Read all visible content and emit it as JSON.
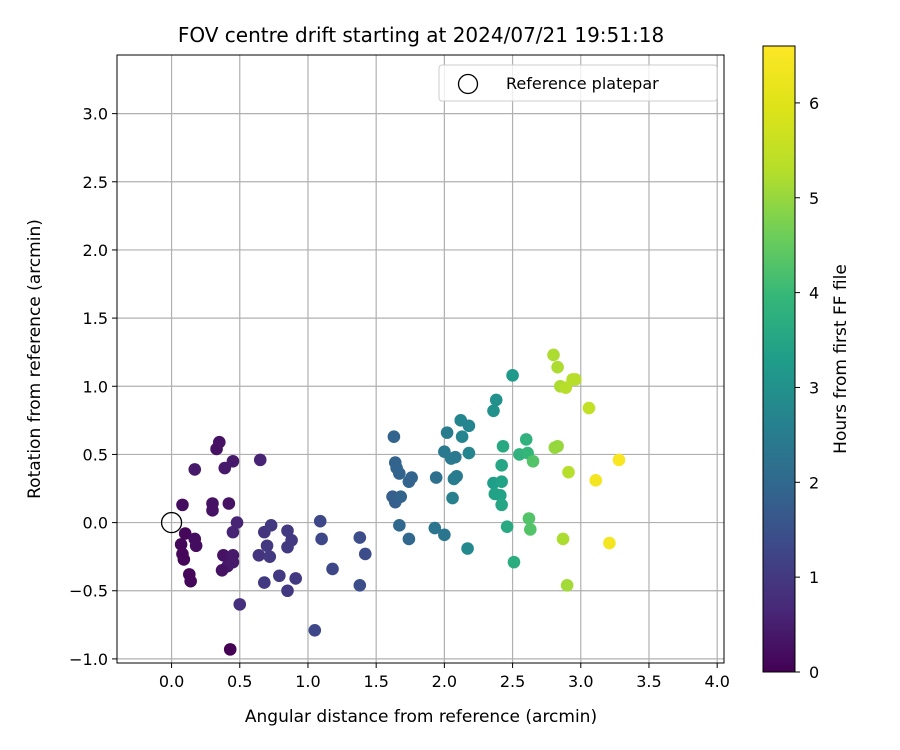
{
  "chart_data": {
    "type": "scatter",
    "title": "FOV centre drift starting at 2024/07/21 19:51:18",
    "xlabel": "Angular distance from reference (arcmin)",
    "ylabel": "Rotation from reference (arcmin)",
    "xlim": [
      -0.4,
      4.05
    ],
    "ylim": [
      -1.03,
      3.43
    ],
    "xticks": [
      0.0,
      0.5,
      1.0,
      1.5,
      2.0,
      2.5,
      3.0,
      3.5,
      4.0
    ],
    "xtick_labels": [
      "0.0",
      "0.5",
      "1.0",
      "1.5",
      "2.0",
      "2.5",
      "3.0",
      "3.5",
      "4.0"
    ],
    "yticks": [
      -1.0,
      -0.5,
      0.0,
      0.5,
      1.0,
      1.5,
      2.0,
      2.5,
      3.0
    ],
    "ytick_labels": [
      "−1.0",
      "−0.5",
      "0.0",
      "0.5",
      "1.0",
      "1.5",
      "2.0",
      "2.5",
      "3.0"
    ],
    "grid": true,
    "legend": {
      "placement": "upper right",
      "entries": [
        "Reference platepar"
      ]
    },
    "reference": {
      "name": "Reference platepar",
      "x": 0.0,
      "y": 0.0
    },
    "colorbar": {
      "label": "Hours from first FF file",
      "range": [
        0,
        6.6
      ],
      "ticks": [
        0,
        1,
        2,
        3,
        4,
        5,
        6
      ],
      "tick_labels": [
        "0",
        "1",
        "2",
        "3",
        "4",
        "5",
        "6"
      ],
      "colormap": "viridis"
    },
    "points": [
      {
        "x": 0.35,
        "y": 0.59,
        "h": 0.3
      },
      {
        "x": 0.33,
        "y": 0.54,
        "h": 0.3
      },
      {
        "x": 0.39,
        "y": 0.4,
        "h": 0.4
      },
      {
        "x": 0.17,
        "y": 0.39,
        "h": 0.4
      },
      {
        "x": 0.3,
        "y": 0.14,
        "h": 0.3
      },
      {
        "x": 0.3,
        "y": 0.09,
        "h": 0.3
      },
      {
        "x": 0.42,
        "y": 0.14,
        "h": 0.3
      },
      {
        "x": 0.08,
        "y": 0.13,
        "h": 0.2
      },
      {
        "x": 0.1,
        "y": -0.08,
        "h": 0.1
      },
      {
        "x": 0.17,
        "y": -0.12,
        "h": 0.2
      },
      {
        "x": 0.07,
        "y": -0.16,
        "h": 0.1
      },
      {
        "x": 0.18,
        "y": -0.17,
        "h": 0.2
      },
      {
        "x": 0.08,
        "y": -0.23,
        "h": 0.1
      },
      {
        "x": 0.09,
        "y": -0.27,
        "h": 0.1
      },
      {
        "x": 0.13,
        "y": -0.38,
        "h": 0.1
      },
      {
        "x": 0.14,
        "y": -0.43,
        "h": 0.1
      },
      {
        "x": 0.38,
        "y": -0.24,
        "h": 0.3
      },
      {
        "x": 0.45,
        "y": -0.24,
        "h": 0.4
      },
      {
        "x": 0.45,
        "y": -0.29,
        "h": 0.4
      },
      {
        "x": 0.41,
        "y": -0.32,
        "h": 0.4
      },
      {
        "x": 0.37,
        "y": -0.35,
        "h": 0.3
      },
      {
        "x": 0.43,
        "y": -0.93,
        "h": 0.0
      },
      {
        "x": 0.45,
        "y": 0.45,
        "h": 0.4
      },
      {
        "x": 0.48,
        "y": 0.0,
        "h": 0.6
      },
      {
        "x": 0.45,
        "y": -0.07,
        "h": 0.6
      },
      {
        "x": 0.65,
        "y": 0.46,
        "h": 0.6
      },
      {
        "x": 0.5,
        "y": -0.6,
        "h": 0.8
      },
      {
        "x": 0.64,
        "y": -0.24,
        "h": 0.9
      },
      {
        "x": 0.68,
        "y": -0.07,
        "h": 0.9
      },
      {
        "x": 0.73,
        "y": -0.02,
        "h": 1.0
      },
      {
        "x": 0.7,
        "y": -0.17,
        "h": 1.0
      },
      {
        "x": 0.72,
        "y": -0.25,
        "h": 1.0
      },
      {
        "x": 0.68,
        "y": -0.44,
        "h": 1.0
      },
      {
        "x": 0.79,
        "y": -0.39,
        "h": 1.0
      },
      {
        "x": 0.85,
        "y": -0.06,
        "h": 1.0
      },
      {
        "x": 0.85,
        "y": -0.18,
        "h": 1.0
      },
      {
        "x": 0.88,
        "y": -0.13,
        "h": 1.0
      },
      {
        "x": 0.91,
        "y": -0.41,
        "h": 1.0
      },
      {
        "x": 0.85,
        "y": -0.5,
        "h": 1.0
      },
      {
        "x": 1.05,
        "y": -0.79,
        "h": 1.3
      },
      {
        "x": 1.09,
        "y": 0.01,
        "h": 1.3
      },
      {
        "x": 1.1,
        "y": -0.12,
        "h": 1.3
      },
      {
        "x": 1.18,
        "y": -0.34,
        "h": 1.3
      },
      {
        "x": 1.38,
        "y": -0.11,
        "h": 1.4
      },
      {
        "x": 1.42,
        "y": -0.23,
        "h": 1.4
      },
      {
        "x": 1.38,
        "y": -0.46,
        "h": 1.4
      },
      {
        "x": 1.63,
        "y": 0.63,
        "h": 1.9
      },
      {
        "x": 1.64,
        "y": 0.44,
        "h": 1.9
      },
      {
        "x": 1.65,
        "y": 0.4,
        "h": 1.9
      },
      {
        "x": 1.67,
        "y": 0.36,
        "h": 1.9
      },
      {
        "x": 1.74,
        "y": 0.3,
        "h": 1.9
      },
      {
        "x": 1.76,
        "y": 0.33,
        "h": 1.9
      },
      {
        "x": 1.62,
        "y": 0.19,
        "h": 1.8
      },
      {
        "x": 1.64,
        "y": 0.15,
        "h": 1.8
      },
      {
        "x": 1.68,
        "y": 0.19,
        "h": 1.9
      },
      {
        "x": 1.67,
        "y": -0.02,
        "h": 2.0
      },
      {
        "x": 1.74,
        "y": -0.12,
        "h": 2.0
      },
      {
        "x": 1.94,
        "y": 0.33,
        "h": 2.2
      },
      {
        "x": 1.93,
        "y": -0.04,
        "h": 2.3
      },
      {
        "x": 2.0,
        "y": -0.09,
        "h": 2.3
      },
      {
        "x": 2.0,
        "y": 0.52,
        "h": 2.4
      },
      {
        "x": 2.05,
        "y": 0.47,
        "h": 2.4
      },
      {
        "x": 2.08,
        "y": 0.48,
        "h": 2.4
      },
      {
        "x": 2.02,
        "y": 0.66,
        "h": 2.5
      },
      {
        "x": 2.07,
        "y": 0.32,
        "h": 2.5
      },
      {
        "x": 2.09,
        "y": 0.34,
        "h": 2.5
      },
      {
        "x": 2.06,
        "y": 0.18,
        "h": 2.6
      },
      {
        "x": 2.12,
        "y": 0.75,
        "h": 2.7
      },
      {
        "x": 2.13,
        "y": 0.63,
        "h": 2.7
      },
      {
        "x": 2.18,
        "y": 0.71,
        "h": 2.7
      },
      {
        "x": 2.18,
        "y": 0.51,
        "h": 2.7
      },
      {
        "x": 2.17,
        "y": -0.19,
        "h": 2.8
      },
      {
        "x": 2.36,
        "y": 0.82,
        "h": 3.0
      },
      {
        "x": 2.38,
        "y": 0.9,
        "h": 3.0
      },
      {
        "x": 2.5,
        "y": 1.08,
        "h": 3.2
      },
      {
        "x": 2.36,
        "y": 0.29,
        "h": 3.3
      },
      {
        "x": 2.37,
        "y": 0.21,
        "h": 3.4
      },
      {
        "x": 2.41,
        "y": 0.2,
        "h": 3.4
      },
      {
        "x": 2.42,
        "y": 0.3,
        "h": 3.4
      },
      {
        "x": 2.42,
        "y": 0.13,
        "h": 3.5
      },
      {
        "x": 2.42,
        "y": 0.42,
        "h": 3.5
      },
      {
        "x": 2.43,
        "y": 0.56,
        "h": 3.6
      },
      {
        "x": 2.46,
        "y": -0.03,
        "h": 3.6
      },
      {
        "x": 2.51,
        "y": -0.29,
        "h": 3.7
      },
      {
        "x": 2.55,
        "y": 0.5,
        "h": 3.8
      },
      {
        "x": 2.6,
        "y": 0.61,
        "h": 3.8
      },
      {
        "x": 2.61,
        "y": 0.51,
        "h": 3.9
      },
      {
        "x": 2.62,
        "y": 0.03,
        "h": 4.3
      },
      {
        "x": 2.63,
        "y": -0.05,
        "h": 4.3
      },
      {
        "x": 2.65,
        "y": 0.45,
        "h": 4.3
      },
      {
        "x": 2.8,
        "y": 1.23,
        "h": 5.2
      },
      {
        "x": 2.83,
        "y": 1.14,
        "h": 5.2
      },
      {
        "x": 2.85,
        "y": 1.0,
        "h": 5.2
      },
      {
        "x": 2.89,
        "y": 0.99,
        "h": 5.3
      },
      {
        "x": 2.94,
        "y": 1.05,
        "h": 5.3
      },
      {
        "x": 2.96,
        "y": 1.05,
        "h": 5.3
      },
      {
        "x": 2.81,
        "y": 0.55,
        "h": 5.0
      },
      {
        "x": 2.83,
        "y": 0.56,
        "h": 5.0
      },
      {
        "x": 2.91,
        "y": 0.37,
        "h": 5.3
      },
      {
        "x": 2.87,
        "y": -0.12,
        "h": 5.2
      },
      {
        "x": 2.9,
        "y": -0.46,
        "h": 5.1
      },
      {
        "x": 3.06,
        "y": 0.84,
        "h": 5.5
      },
      {
        "x": 3.11,
        "y": 0.31,
        "h": 6.4
      },
      {
        "x": 3.28,
        "y": 0.46,
        "h": 6.5
      },
      {
        "x": 3.21,
        "y": -0.15,
        "h": 6.4
      }
    ]
  }
}
